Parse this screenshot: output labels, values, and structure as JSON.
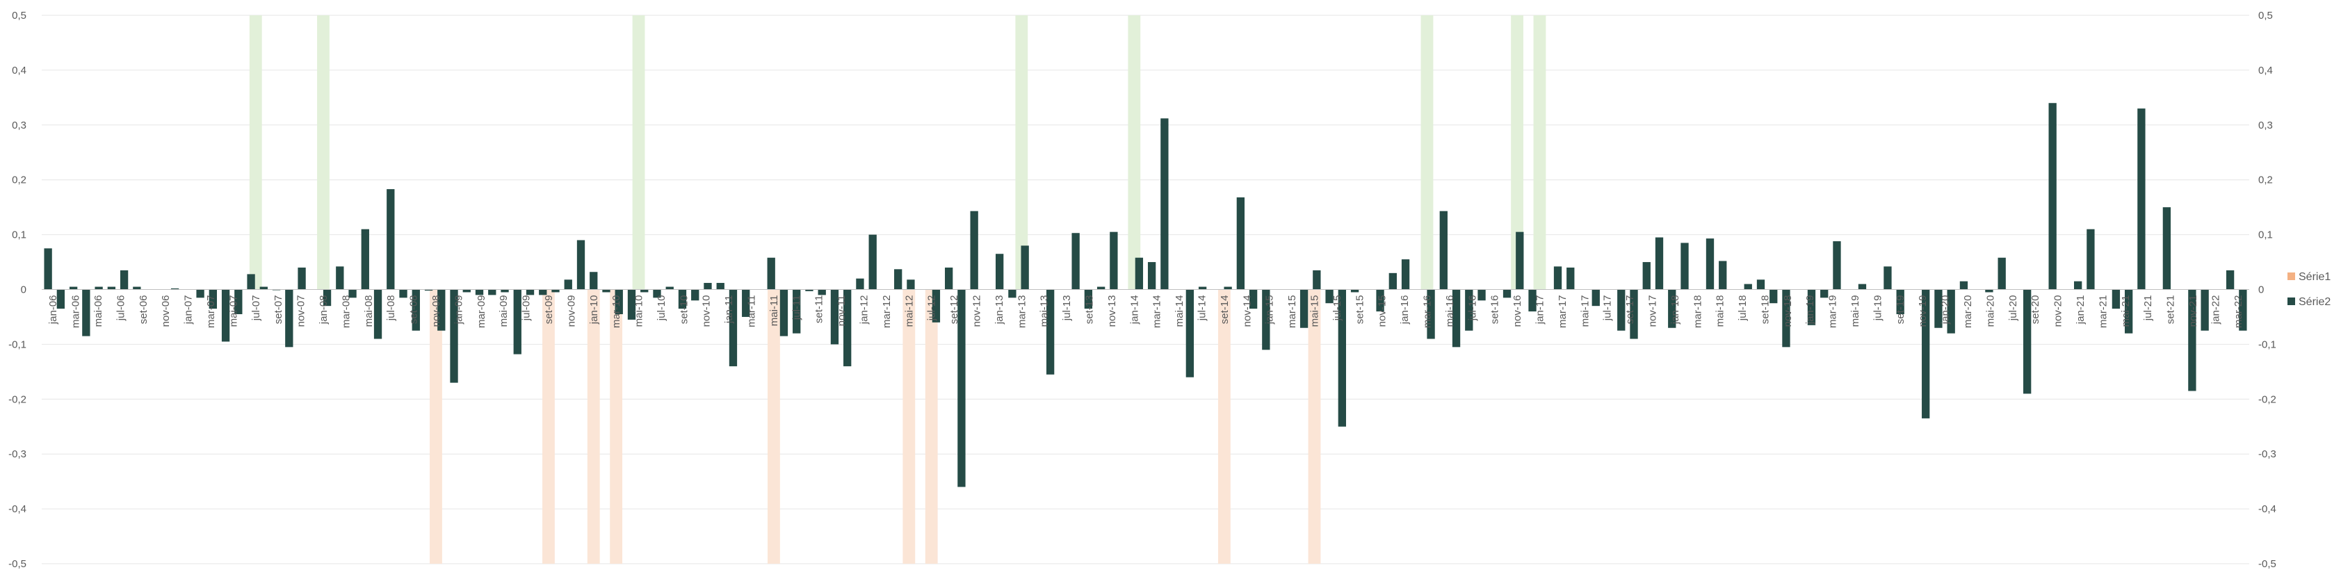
{
  "chart_data": {
    "type": "bar",
    "title": "",
    "xlabel": "",
    "ylabel": "",
    "ylim": [
      -0.5,
      0.5
    ],
    "yticks": [
      "-0,5",
      "-0,4",
      "-0,3",
      "-0,2",
      "-0,1",
      "0",
      "0,1",
      "0,2",
      "0,3",
      "0,4",
      "0,5"
    ],
    "grid": true,
    "legend_position": "right",
    "colors": {
      "serie1_pos": "#e2f0d9",
      "serie1_neg": "#fbe5d6",
      "serie1_legend": "#f4b183",
      "serie2": "#254b46",
      "grid": "#e6e6e6"
    },
    "x_labels": [
      "jan-06",
      "mar-06",
      "mai-06",
      "jul-06",
      "set-06",
      "nov-06",
      "jan-07",
      "mar-07",
      "mai-07",
      "jul-07",
      "set-07",
      "nov-07",
      "jan-08",
      "mar-08",
      "mai-08",
      "jul-08",
      "set-08",
      "nov-08",
      "jan-09",
      "mar-09",
      "mai-09",
      "jul-09",
      "set-09",
      "nov-09",
      "jan-10",
      "mar-10",
      "mai-10",
      "jul-10",
      "set-10",
      "nov-10",
      "jan-11",
      "mar-11",
      "mai-11",
      "jul-11",
      "set-11",
      "nov-11",
      "jan-12",
      "mar-12",
      "mai-12",
      "jul-12",
      "set-12",
      "nov-12",
      "jan-13",
      "mar-13",
      "mai-13",
      "jul-13",
      "set-13",
      "nov-13",
      "jan-14",
      "mar-14",
      "mai-14",
      "jul-14",
      "set-14",
      "nov-14",
      "jan-15",
      "mar-15",
      "mai-15",
      "jul-15",
      "set-15",
      "nov-15",
      "jan-16",
      "mar-16",
      "mai-16",
      "jul-16",
      "set-16",
      "nov-16",
      "jan-17",
      "mar-17",
      "mai-17",
      "jul-17",
      "set-17",
      "nov-17",
      "jan-18",
      "mar-18",
      "mai-18",
      "jul-18",
      "set-18",
      "nov-18",
      "jan-19",
      "mar-19",
      "mai-19",
      "jul-19",
      "set-19",
      "nov-19",
      "jan-20",
      "mar-20",
      "mai-20",
      "jul-20",
      "set-20",
      "nov-20",
      "jan-21",
      "mar-21",
      "mai-21",
      "jul-21",
      "set-21",
      "nov-21",
      "jan-22",
      "mar-22"
    ],
    "series": [
      {
        "name": "Série1",
        "values": [
          0,
          0,
          0,
          0,
          0,
          0,
          0,
          0,
          0,
          0,
          0,
          0,
          0,
          0,
          0,
          0,
          0,
          0,
          0,
          0,
          0,
          0,
          0,
          0,
          0,
          0,
          0,
          0,
          0,
          0,
          0,
          0,
          0,
          0,
          0,
          0,
          0,
          0,
          0,
          0,
          0,
          0,
          0,
          0,
          0,
          0,
          0,
          0,
          0,
          0,
          0,
          0,
          0,
          0,
          0,
          0,
          0,
          0,
          0,
          0,
          0,
          0,
          0,
          0,
          0,
          0,
          0,
          0,
          0,
          0,
          0,
          0,
          0,
          0,
          0,
          0,
          0,
          0,
          0,
          0,
          0,
          0,
          0,
          0,
          0,
          0,
          0,
          0,
          0,
          0,
          0,
          0,
          0,
          0,
          0,
          0,
          0,
          0,
          0,
          0,
          0,
          0,
          0,
          0,
          0,
          0,
          0,
          0,
          0,
          0,
          0,
          0,
          0,
          0,
          0,
          0,
          0,
          0,
          0,
          0,
          0,
          0,
          0,
          0,
          0,
          0,
          0,
          0,
          0,
          0,
          0,
          0,
          0,
          0,
          0,
          0,
          0,
          0,
          0,
          0,
          0,
          0,
          0,
          0,
          0,
          0,
          0,
          0,
          0,
          0,
          0,
          0,
          0,
          0,
          0,
          0,
          0,
          0,
          0,
          0,
          0,
          0,
          0,
          0,
          0,
          0,
          0,
          0,
          0,
          0,
          0,
          0,
          0,
          0,
          0,
          0,
          0,
          0,
          0,
          0,
          0,
          0,
          0,
          0,
          0,
          0,
          0,
          0,
          0,
          0,
          0,
          0,
          0,
          0,
          0
        ]
      },
      {
        "name": "Série2",
        "values": [
          0.075,
          -0.035,
          0.005,
          -0.085,
          0.005,
          0.005,
          0.035,
          0.005,
          0,
          0,
          0.002,
          0,
          -0.015,
          -0.035,
          -0.095,
          -0.045,
          0.028,
          0.005,
          -0.001,
          -0.105,
          0.04,
          0,
          -0.03,
          0.042,
          -0.015,
          0.11,
          -0.09,
          0.183,
          -0.015,
          -0.075,
          -0.002,
          -0.075,
          -0.17,
          -0.005,
          -0.01,
          -0.01,
          -0.005,
          -0.118,
          -0.01,
          -0.01,
          -0.005,
          0.018,
          0.09,
          0.032,
          -0.005,
          -0.045,
          -0.055,
          -0.005,
          -0.015,
          0.005,
          -0.035,
          -0.02,
          0.012,
          0.012,
          -0.14,
          -0.05,
          0,
          0.058,
          -0.085,
          -0.08,
          -0.003,
          -0.01,
          -0.1,
          -0.14,
          0.02,
          0.1,
          0,
          0.037,
          0.018,
          0,
          -0.06,
          0.04,
          -0.36,
          0.143,
          0,
          0.065,
          -0.015,
          0.08,
          0,
          -0.155,
          0,
          0.103,
          -0.035,
          0.005,
          0.105,
          0,
          0.058,
          0.05,
          0.312,
          0,
          -0.16,
          0.005,
          0,
          0.005,
          0.168,
          -0.035,
          -0.11,
          0,
          0,
          -0.07,
          0.035,
          -0.025,
          -0.25,
          -0.005,
          0,
          -0.04,
          0.03,
          0.055,
          0,
          -0.09,
          0.143,
          -0.105,
          -0.075,
          -0.02,
          0,
          -0.015,
          0.105,
          -0.04,
          0,
          0.042,
          0.04,
          0,
          -0.03,
          0,
          -0.075,
          -0.09,
          0.05,
          0.095,
          -0.07,
          0.085,
          0,
          0.093,
          0.052,
          0,
          0.01,
          0.018,
          -0.025,
          -0.105,
          0,
          -0.065,
          -0.015,
          0.088,
          0,
          0.01,
          0,
          0.042,
          -0.045,
          0,
          -0.235,
          -0.07,
          -0.08,
          0.015,
          0,
          -0.005,
          0.058,
          0,
          -0.19,
          0,
          0.34,
          0,
          0.015,
          0.11,
          0,
          -0.035,
          -0.08,
          0.33,
          0,
          0.15,
          0,
          -0.185,
          -0.075,
          0,
          0.035,
          -0.075
        ]
      }
    ],
    "highlights": [
      {
        "index": 9,
        "value": 0.5
      },
      {
        "index": 12,
        "value": 0.5
      },
      {
        "index": 26,
        "value": 0.5
      },
      {
        "index": 43,
        "value": 0.5
      },
      {
        "index": 48,
        "value": 0.5
      },
      {
        "index": 61,
        "value": 0.5
      },
      {
        "index": 65,
        "value": 0.5
      },
      {
        "index": 66,
        "value": 0.5
      },
      {
        "index": 17,
        "value": -0.5
      },
      {
        "index": 22,
        "value": -0.5
      },
      {
        "index": 24,
        "value": -0.5
      },
      {
        "index": 25,
        "value": -0.5
      },
      {
        "index": 32,
        "value": -0.5
      },
      {
        "index": 38,
        "value": -0.5
      },
      {
        "index": 39,
        "value": -0.5
      },
      {
        "index": 52,
        "value": -0.5
      },
      {
        "index": 56,
        "value": -0.5
      }
    ],
    "legend": [
      {
        "label": "Série1",
        "color_key": "serie1_legend"
      },
      {
        "label": "Série2",
        "color_key": "serie2"
      }
    ]
  }
}
